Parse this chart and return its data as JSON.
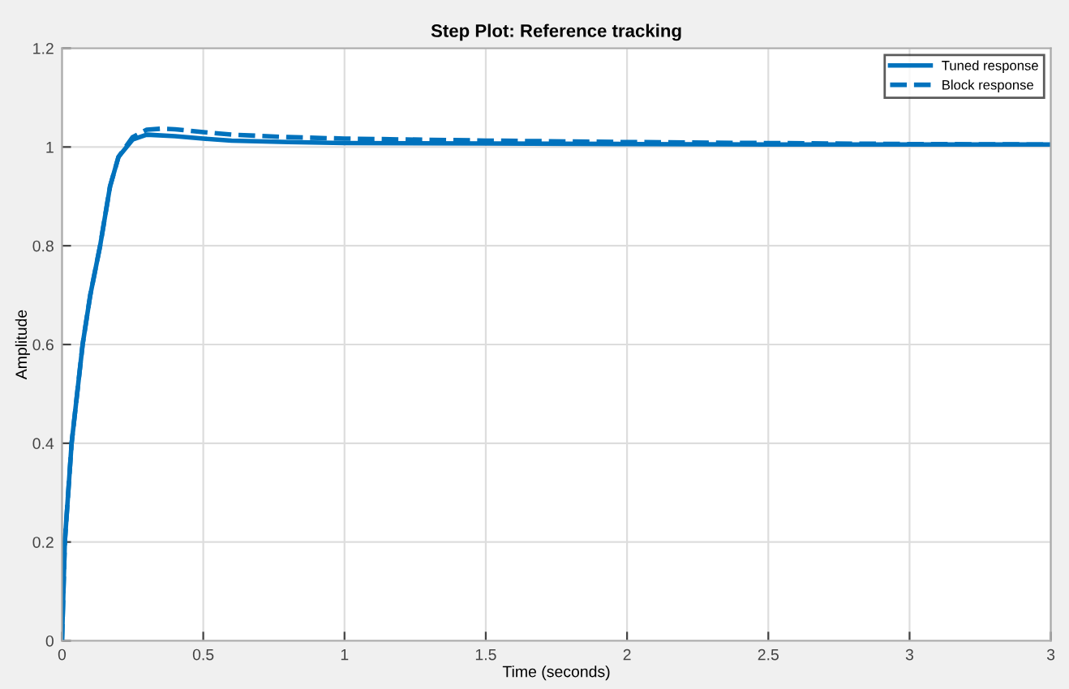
{
  "chart_data": {
    "type": "line",
    "title": "Step Plot: Reference tracking",
    "xlabel": "Time (seconds)",
    "ylabel": "Amplitude",
    "xlim": [
      0,
      3.5
    ],
    "xticks": [
      0,
      0.5,
      1,
      1.5,
      2,
      2.5,
      3,
      {
        "value": 3.5,
        "label": "3"
      }
    ],
    "ylim": [
      0,
      1.2
    ],
    "yticks": [
      0,
      0.2,
      0.4,
      0.6,
      0.8,
      1,
      1.2
    ],
    "grid": true,
    "legend": "top right",
    "series": [
      {
        "name": "Tuned response",
        "color": "#0072bd",
        "line_style": "solid",
        "x": [
          0,
          0.01,
          0.034,
          0.073,
          0.1,
          0.135,
          0.17,
          0.2,
          0.25,
          0.3,
          0.4,
          0.5,
          0.6,
          0.8,
          1.0,
          1.5,
          2.0,
          2.5,
          3.0,
          3.5
        ],
        "values": [
          0,
          0.2,
          0.4,
          0.6,
          0.7,
          0.8,
          0.92,
          0.98,
          1.015,
          1.025,
          1.022,
          1.017,
          1.013,
          1.01,
          1.008,
          1.007,
          1.006,
          1.005,
          1.005,
          1.005
        ]
      },
      {
        "name": "Block response",
        "color": "#0072bd",
        "line_style": "dashed",
        "x": [
          0,
          0.01,
          0.034,
          0.073,
          0.1,
          0.135,
          0.17,
          0.2,
          0.25,
          0.3,
          0.35,
          0.4,
          0.5,
          0.6,
          0.8,
          1.0,
          1.5,
          2.0,
          2.5,
          3.0,
          3.5
        ],
        "values": [
          0,
          0.2,
          0.4,
          0.6,
          0.7,
          0.8,
          0.92,
          0.98,
          1.02,
          1.035,
          1.037,
          1.036,
          1.03,
          1.025,
          1.02,
          1.017,
          1.013,
          1.01,
          1.008,
          1.006,
          1.005
        ]
      }
    ]
  }
}
